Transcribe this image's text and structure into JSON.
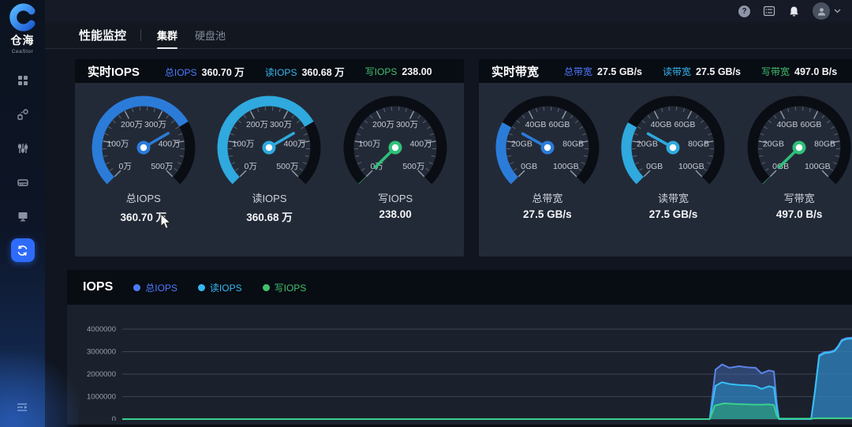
{
  "brand": {
    "name": "仓海",
    "sub": "CeaStor"
  },
  "topbar": {
    "icons": [
      "help",
      "console",
      "notifications",
      "user-menu"
    ]
  },
  "nav": {
    "title": "性能监控",
    "tabs": [
      {
        "label": "集群",
        "active": true
      },
      {
        "label": "硬盘池",
        "active": false
      }
    ]
  },
  "sidebar_items": [
    "dashboard",
    "topology",
    "tuning",
    "storage-pool",
    "host",
    "performance"
  ],
  "panels": [
    {
      "title": "实时IOPS",
      "stats": [
        {
          "label": "总IOPS",
          "value": "360.70 万",
          "color": "#4d7bfe"
        },
        {
          "label": "读IOPS",
          "value": "360.68 万",
          "color": "#38b6f1"
        },
        {
          "label": "写IOPS",
          "value": "238.00",
          "color": "#43c06e"
        }
      ],
      "gauges": [
        {
          "name": "总IOPS",
          "value_display": "360.70 万",
          "value": 3607000,
          "max": 5000000,
          "fraction": 0.7214,
          "color": "#2b7cd9",
          "ticks": [
            "0万",
            "100万",
            "200万",
            "300万",
            "400万",
            "500万"
          ]
        },
        {
          "name": "读IOPS",
          "value_display": "360.68 万",
          "value": 3606800,
          "max": 5000000,
          "fraction": 0.7214,
          "color": "#2fa9de",
          "ticks": [
            "0万",
            "100万",
            "200万",
            "300万",
            "400万",
            "500万"
          ]
        },
        {
          "name": "写IOPS",
          "value_display": "238.00",
          "value": 238,
          "max": 5000000,
          "fraction": 5e-05,
          "color": "#2fbf7a",
          "ticks": [
            "0万",
            "100万",
            "200万",
            "300万",
            "400万",
            "500万"
          ]
        }
      ]
    },
    {
      "title": "实时带宽",
      "stats": [
        {
          "label": "总带宽",
          "value": "27.5 GB/s",
          "color": "#4d7bfe"
        },
        {
          "label": "读带宽",
          "value": "27.5 GB/s",
          "color": "#38b6f1"
        },
        {
          "label": "写带宽",
          "value": "497.0 B/s",
          "color": "#43c06e"
        }
      ],
      "gauges": [
        {
          "name": "总带宽",
          "value_display": "27.5 GB/s",
          "value": 27.5,
          "max": 100,
          "fraction": 0.275,
          "color": "#2b7cd9",
          "ticks": [
            "0GB",
            "20GB",
            "40GB",
            "60GB",
            "80GB",
            "100GB"
          ]
        },
        {
          "name": "读带宽",
          "value_display": "27.5 GB/s",
          "value": 27.5,
          "max": 100,
          "fraction": 0.275,
          "color": "#2fa9de",
          "ticks": [
            "0GB",
            "20GB",
            "40GB",
            "60GB",
            "80GB",
            "100GB"
          ]
        },
        {
          "name": "写带宽",
          "value_display": "497.0 B/s",
          "value": 5e-07,
          "max": 100,
          "fraction": 5e-06,
          "color": "#2fbf7a",
          "ticks": [
            "0GB",
            "20GB",
            "40GB",
            "60GB",
            "80GB",
            "100GB"
          ]
        }
      ]
    }
  ],
  "chart_data": {
    "type": "area",
    "title": "IOPS",
    "xlabel": "",
    "ylabel": "",
    "ylim": [
      0,
      4000000
    ],
    "yticks": [
      0,
      1000000,
      2000000,
      3000000,
      4000000
    ],
    "grid": true,
    "legend_position": "top",
    "legend": [
      {
        "label": "总IOPS",
        "color": "#4d7bfe"
      },
      {
        "label": "读IOPS",
        "color": "#38b6f1"
      },
      {
        "label": "写IOPS",
        "color": "#43c06e"
      }
    ],
    "series": [
      {
        "name": "总IOPS",
        "line": "#5b83e8",
        "fill": "rgba(64,105,177,0.50)",
        "points": [
          [
            0,
            0
          ],
          [
            0.805,
            0
          ],
          [
            0.813,
            2200000
          ],
          [
            0.822,
            2430000
          ],
          [
            0.832,
            2280000
          ],
          [
            0.845,
            2350000
          ],
          [
            0.858,
            2300000
          ],
          [
            0.868,
            2280000
          ],
          [
            0.876,
            2030000
          ],
          [
            0.886,
            2160000
          ],
          [
            0.893,
            2120000
          ],
          [
            0.897,
            700000
          ],
          [
            0.9,
            0
          ],
          [
            0.944,
            0
          ],
          [
            0.949,
            1200000
          ],
          [
            0.955,
            2850000
          ],
          [
            0.962,
            2980000
          ],
          [
            0.97,
            3000000
          ],
          [
            0.976,
            3060000
          ],
          [
            0.981,
            3250000
          ],
          [
            0.986,
            3520000
          ],
          [
            0.992,
            3600000
          ],
          [
            1,
            3620000
          ]
        ]
      },
      {
        "name": "读IOPS",
        "line": "#35c0f5",
        "fill": "rgba(41,156,214,0.45)",
        "points": [
          [
            0,
            0
          ],
          [
            0.805,
            0
          ],
          [
            0.813,
            1480000
          ],
          [
            0.822,
            1640000
          ],
          [
            0.832,
            1560000
          ],
          [
            0.845,
            1520000
          ],
          [
            0.858,
            1500000
          ],
          [
            0.868,
            1470000
          ],
          [
            0.876,
            1340000
          ],
          [
            0.886,
            1460000
          ],
          [
            0.893,
            1410000
          ],
          [
            0.897,
            450000
          ],
          [
            0.9,
            0
          ],
          [
            0.944,
            0
          ],
          [
            0.949,
            1150000
          ],
          [
            0.955,
            2800000
          ],
          [
            0.962,
            2930000
          ],
          [
            0.97,
            2960000
          ],
          [
            0.976,
            3020000
          ],
          [
            0.981,
            3210000
          ],
          [
            0.986,
            3480000
          ],
          [
            0.992,
            3560000
          ],
          [
            1,
            3580000
          ]
        ]
      },
      {
        "name": "写IOPS",
        "line": "#3ad08d",
        "fill": "rgba(44,168,113,0.55)",
        "points": [
          [
            0,
            0
          ],
          [
            0.805,
            0
          ],
          [
            0.812,
            600000
          ],
          [
            0.825,
            700000
          ],
          [
            0.84,
            670000
          ],
          [
            0.86,
            650000
          ],
          [
            0.875,
            640000
          ],
          [
            0.886,
            655000
          ],
          [
            0.893,
            620000
          ],
          [
            0.897,
            150000
          ],
          [
            0.9,
            20000
          ],
          [
            0.944,
            20000
          ],
          [
            0.95,
            40000
          ],
          [
            1,
            40000
          ]
        ]
      }
    ]
  }
}
